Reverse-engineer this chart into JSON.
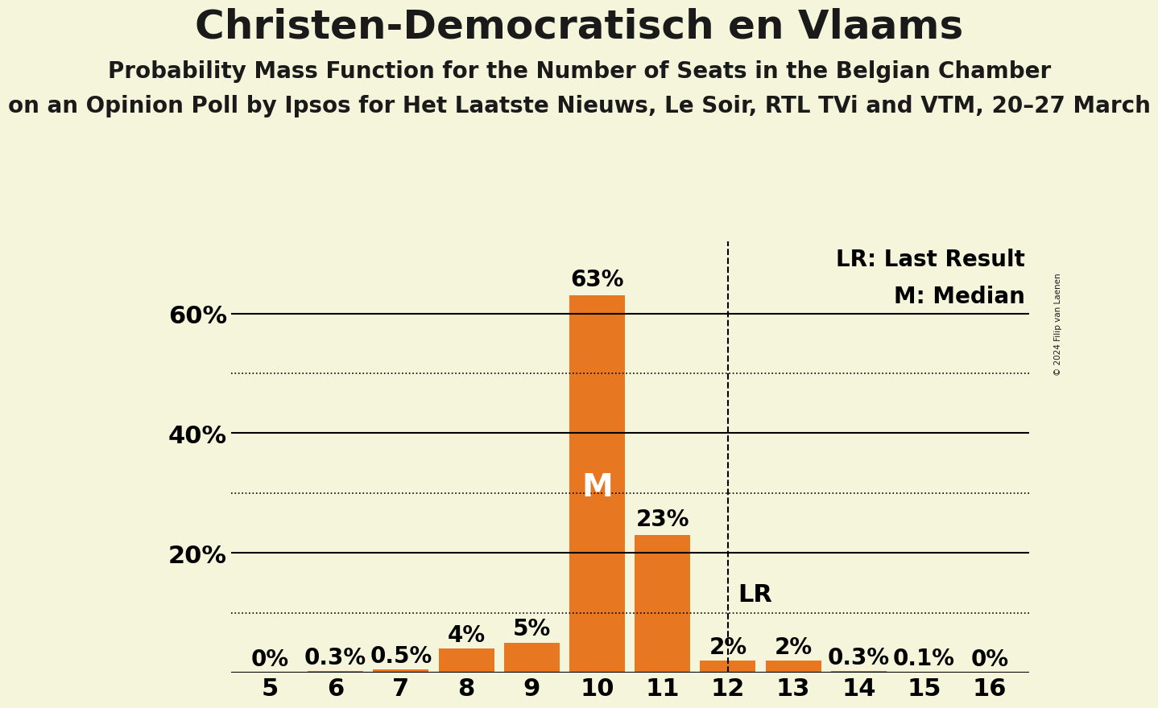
{
  "title": "Christen-Democratisch en Vlaams",
  "subtitle": "Probability Mass Function for the Number of Seats in the Belgian Chamber",
  "subtitle2": "on an Opinion Poll by Ipsos for Het Laatste Nieuws, Le Soir, RTL TVi and VTM, 20–27 March",
  "copyright": "© 2024 Filip van Laenen",
  "seats": [
    5,
    6,
    7,
    8,
    9,
    10,
    11,
    12,
    13,
    14,
    15,
    16
  ],
  "probabilities": [
    0.0,
    0.3,
    0.5,
    4.0,
    5.0,
    63.0,
    23.0,
    2.0,
    2.0,
    0.3,
    0.1,
    0.0
  ],
  "bar_color": "#E87722",
  "background_color": "#F5F5DC",
  "median_seat": 10,
  "lr_seat": 12,
  "dotted_lines": [
    10,
    30,
    50
  ],
  "solid_lines": [
    20,
    40,
    60
  ],
  "ylim_max": 72,
  "legend_lr": "LR: Last Result",
  "legend_m": "M: Median",
  "title_fontsize": 36,
  "subtitle_fontsize": 20,
  "tick_fontsize": 22,
  "bar_label_fontsize": 20,
  "median_fontsize": 28,
  "lr_fontsize": 22,
  "bar_labels": [
    "0%",
    "0.3%",
    "0.5%",
    "4%",
    "5%",
    "63%",
    "23%",
    "2%",
    "2%",
    "0.3%",
    "0.1%",
    "0%"
  ]
}
